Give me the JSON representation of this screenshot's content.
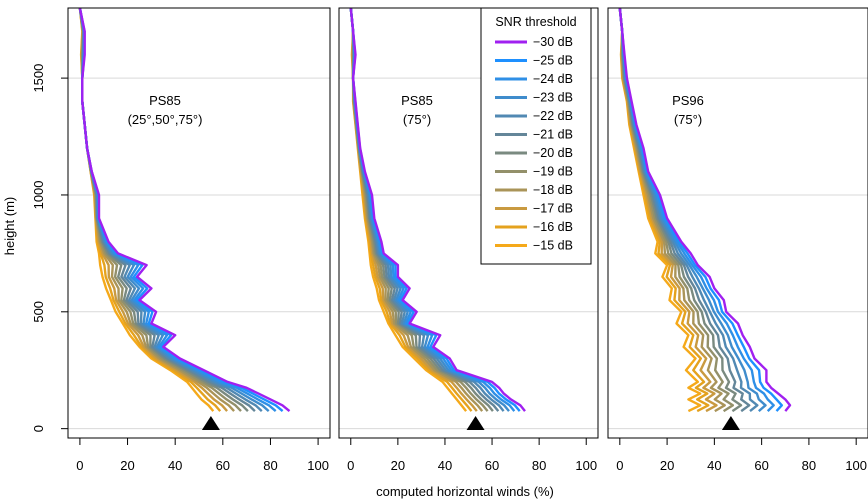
{
  "chart_data": {
    "type": "line",
    "xlabel": "computed horizontal winds (%)",
    "ylabel": "height (m)",
    "xlim": [
      -5,
      105
    ],
    "ylim": [
      -40,
      1800
    ],
    "xticks": [
      0,
      20,
      40,
      60,
      80,
      100
    ],
    "yticks": [
      0,
      500,
      1000,
      1500
    ],
    "grid": "horizontal",
    "legend": {
      "title": "SNR threshold",
      "placement": "top-right of middle panel",
      "items": [
        "−30 dB",
        "−25 dB",
        "−24 dB",
        "−23 dB",
        "−22 dB",
        "−21 dB",
        "−20 dB",
        "−19 dB",
        "−18 dB",
        "−17 dB",
        "−16 dB",
        "−15 dB"
      ],
      "colors": [
        "#A020F0",
        "#1E90FF",
        "#2F8FE6",
        "#3F8CCC",
        "#5189B3",
        "#648699",
        "#7A8A80",
        "#93906A",
        "#AA9458",
        "#C99A40",
        "#E4A21E",
        "#F5A91A"
      ]
    },
    "panels": [
      {
        "title_lines": [
          "PS85",
          "(25°,50°,75°)"
        ],
        "marker_x": 55,
        "heights": [
          75,
          100,
          125,
          150,
          175,
          200,
          250,
          300,
          350,
          400,
          450,
          500,
          550,
          600,
          650,
          700,
          750,
          800,
          900,
          1000,
          1100,
          1200,
          1300,
          1400,
          1500,
          1600,
          1700,
          1800
        ],
        "series": [
          {
            "name": "−30 dB",
            "values": [
              88,
              85,
              80,
              75,
              70,
              62,
              52,
              42,
              35,
              40,
              30,
              32,
              25,
              30,
              24,
              28,
              16,
              12,
              8,
              8,
              5,
              3,
              2,
              1,
              1,
              2,
              2,
              0
            ]
          },
          {
            "name": "−15 dB",
            "values": [
              56,
              54,
              51,
              49,
              47,
              45,
              38,
              30,
              25,
              21,
              18,
              15,
              13,
              11,
              9.5,
              8.5,
              8,
              7,
              6.5,
              6,
              4.5,
              3,
              2,
              1,
              1,
              0.5,
              1,
              0
            ]
          }
        ]
      },
      {
        "title_lines": [
          "PS85",
          "(75°)"
        ],
        "marker_x": 53,
        "heights": [
          75,
          100,
          125,
          150,
          175,
          200,
          250,
          300,
          350,
          400,
          450,
          500,
          550,
          600,
          650,
          700,
          750,
          800,
          900,
          1000,
          1100,
          1200,
          1300,
          1400,
          1500,
          1600,
          1700,
          1800
        ],
        "series": [
          {
            "name": "−30 dB",
            "values": [
              74,
              72,
              68,
              65,
              63,
              60,
              45,
              42,
              35,
              38,
              25,
              28,
              22,
              25,
              20,
              20,
              14,
              13,
              10,
              9,
              6,
              4,
              3,
              2,
              1,
              2,
              1,
              0
            ]
          },
          {
            "name": "−15 dB",
            "values": [
              49,
              47,
              45,
              43,
              41,
              39,
              32,
              27,
              22,
              19,
              16,
              14,
              12,
              11,
              9.5,
              8.5,
              8,
              7.5,
              6,
              5,
              4,
              3,
              2,
              1,
              1,
              0.5,
              1,
              0
            ]
          }
        ]
      },
      {
        "title_lines": [
          "PS96",
          "(75°)"
        ],
        "marker_x": 47,
        "heights": [
          75,
          100,
          125,
          150,
          175,
          200,
          250,
          300,
          350,
          400,
          450,
          500,
          550,
          600,
          650,
          700,
          750,
          800,
          900,
          1000,
          1100,
          1200,
          1300,
          1400,
          1500,
          1600,
          1700,
          1800
        ],
        "series": [
          {
            "name": "−30 dB",
            "values": [
              70,
              72,
              70,
              67,
              64,
              62,
              62,
              57,
              55,
              52,
              50,
              45,
              44,
              40,
              38,
              33,
              30,
              26,
              20,
              17,
              12,
              10,
              7,
              5,
              3,
              2,
              1,
              0
            ]
          },
          {
            "name": "−15 dB",
            "values": [
              29,
              34,
              29,
              34,
              29,
              33,
              28,
              32,
              27,
              29,
              24,
              26,
              21,
              22,
              18,
              20,
              15,
              16,
              12,
              10,
              8,
              6,
              4,
              3,
              1,
              0.5,
              1,
              0
            ]
          }
        ]
      }
    ]
  }
}
